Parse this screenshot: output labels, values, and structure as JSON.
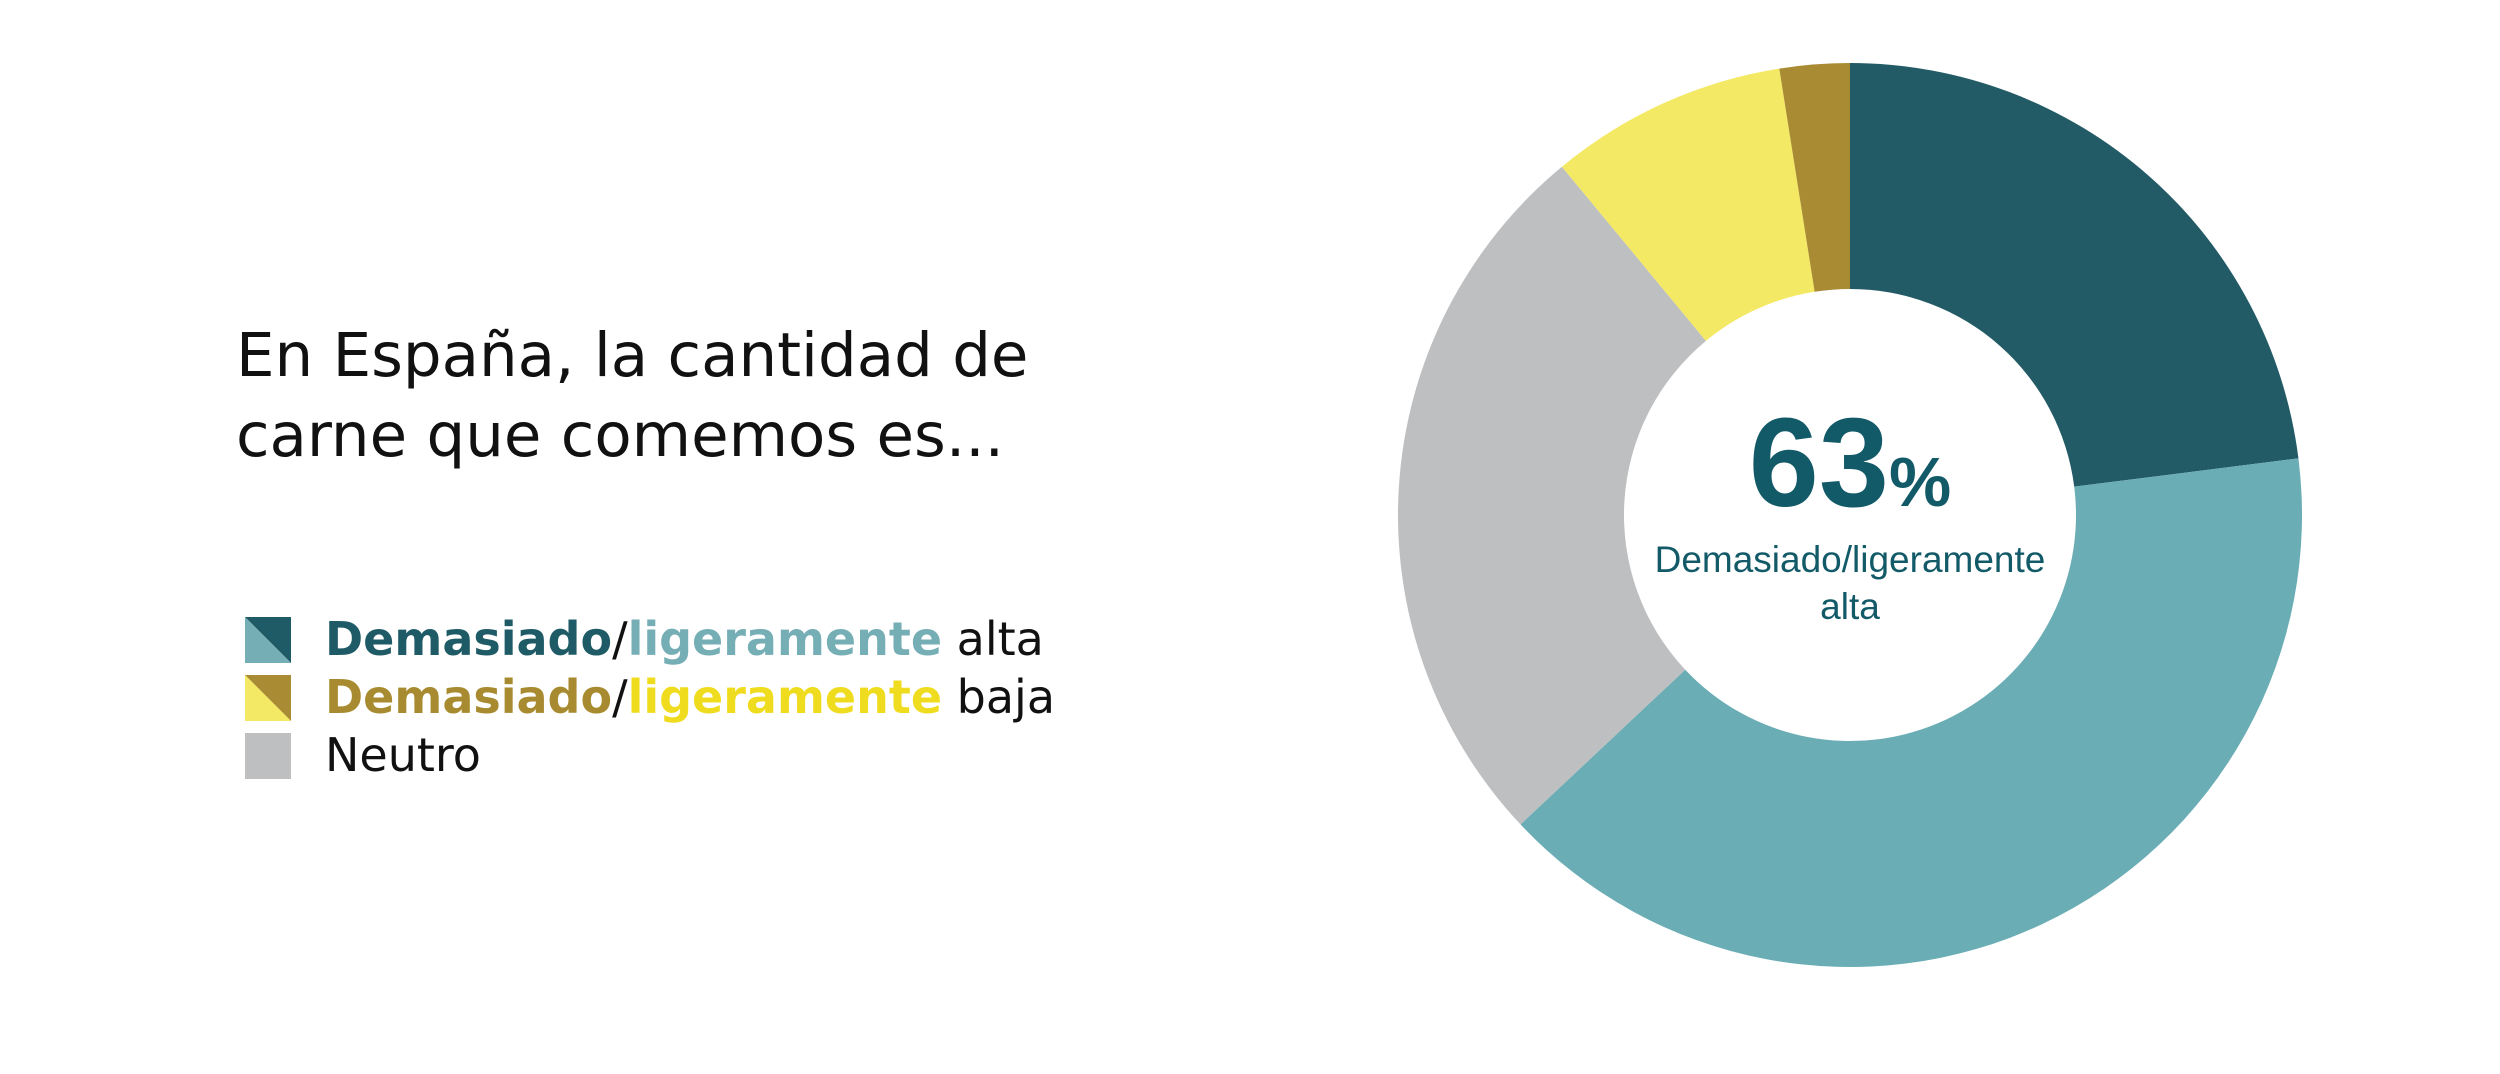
{
  "title": {
    "line1": "En España, la cantidad de",
    "line2": "carne que comemos es..."
  },
  "legend": {
    "items": [
      {
        "strong1": "Demasiado",
        "sep": "/",
        "strong2": "ligeramente",
        "rest": " alta",
        "color1": "#205b66",
        "color2": "#76aeb6"
      },
      {
        "strong1": "Demasiado",
        "sep": "/",
        "strong2": "ligeramente",
        "rest": " baja",
        "color1": "#a88b30",
        "color2": "#f0dc1e"
      },
      {
        "rest": "Neutro",
        "color1": "#bdbfc1"
      }
    ]
  },
  "center": {
    "value": "63",
    "unit": "%",
    "label_line1": "Demasiado/ligeramente",
    "label_line2": "alta"
  },
  "chart_data": {
    "type": "pie",
    "variant": "donut",
    "title": "En España, la cantidad de carne que comemos es...",
    "slices": [
      {
        "name": "Demasiado alta",
        "value": 23,
        "color": "#225b66"
      },
      {
        "name": "Ligeramente alta",
        "value": 40,
        "color": "#6aadb5"
      },
      {
        "name": "Neutro",
        "value": 26,
        "color": "#bebfc1"
      },
      {
        "name": "Ligeramente baja",
        "value": 8.5,
        "color": "#f4e964"
      },
      {
        "name": "Demasiado baja",
        "value": 2.5,
        "color": "#a88b33"
      }
    ],
    "start": "top",
    "direction": "clockwise",
    "legend_position": "left"
  }
}
